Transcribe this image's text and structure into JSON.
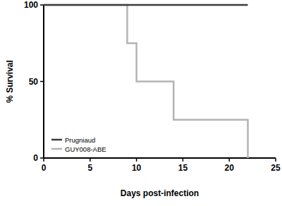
{
  "chart_data": {
    "type": "line",
    "line_style": "step",
    "x_label": "Days post-infection",
    "y_label": "% Survival",
    "series": [
      {
        "name": "Prugniaud",
        "color": "#3c3c3c",
        "x": [
          0,
          22
        ],
        "values": [
          100,
          100
        ]
      },
      {
        "name": "GUY008-ABE",
        "color": "#b4b4b4",
        "x": [
          0,
          9,
          10,
          14,
          22
        ],
        "values": [
          100,
          75,
          50,
          25,
          0
        ]
      }
    ],
    "xlim": [
      0,
      25
    ],
    "xticks": [
      0,
      5,
      10,
      15,
      20,
      25
    ],
    "ylim": [
      0,
      100
    ],
    "yticks": [
      0,
      50,
      100
    ],
    "grid": false,
    "legend": "lower left"
  }
}
